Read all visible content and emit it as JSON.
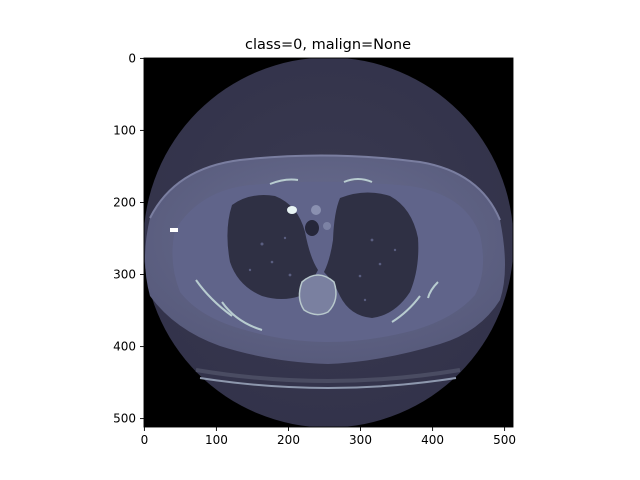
{
  "figure": {
    "title": "class=0, malign=None"
  },
  "image_axes": {
    "x_ticks": [
      "0",
      "100",
      "200",
      "300",
      "400",
      "500"
    ],
    "y_ticks": [
      "0",
      "100",
      "200",
      "300",
      "400",
      "500"
    ],
    "x_range": [
      0,
      512
    ],
    "y_range": [
      0,
      512
    ],
    "colormap": "bone",
    "content": "axial chest CT slice"
  },
  "colors": {
    "background": "#000000",
    "scan_field": "#36364a",
    "soft_tissue": "#5d6080",
    "lung": "#2f3044",
    "bone": "#c8dcdc"
  }
}
